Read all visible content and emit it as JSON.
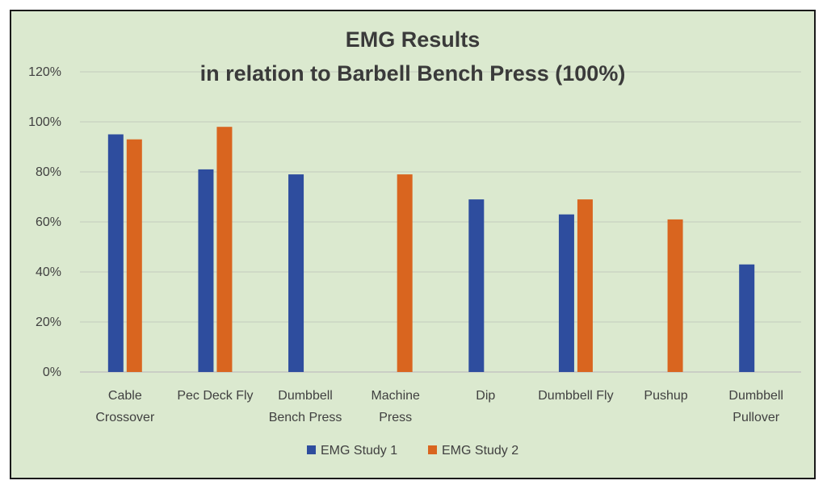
{
  "chart_data": {
    "type": "bar",
    "title_lines": [
      "EMG Results",
      "in relation to Barbell Bench Press (100%)"
    ],
    "xlabel": "",
    "ylabel": "",
    "ylim": [
      0,
      120
    ],
    "yticks": [
      "0%",
      "20%",
      "40%",
      "60%",
      "80%",
      "100%",
      "120%"
    ],
    "ytick_values": [
      0,
      20,
      40,
      60,
      80,
      100,
      120
    ],
    "grid": true,
    "legend_position": "bottom",
    "categories": [
      [
        "Cable",
        "Crossover"
      ],
      [
        "Pec Deck Fly"
      ],
      [
        "Dumbbell",
        "Bench Press"
      ],
      [
        "Machine",
        "Press"
      ],
      [
        "Dip"
      ],
      [
        "Dumbbell Fly"
      ],
      [
        "Pushup"
      ],
      [
        "Dumbbell",
        "Pullover"
      ]
    ],
    "series": [
      {
        "name": "EMG Study 1",
        "color": "#2e4d9e",
        "values": [
          95,
          81,
          79,
          null,
          69,
          63,
          null,
          43
        ]
      },
      {
        "name": "EMG Study 2",
        "color": "#d9651f",
        "values": [
          93,
          98,
          null,
          79,
          null,
          69,
          61,
          null
        ]
      }
    ]
  }
}
